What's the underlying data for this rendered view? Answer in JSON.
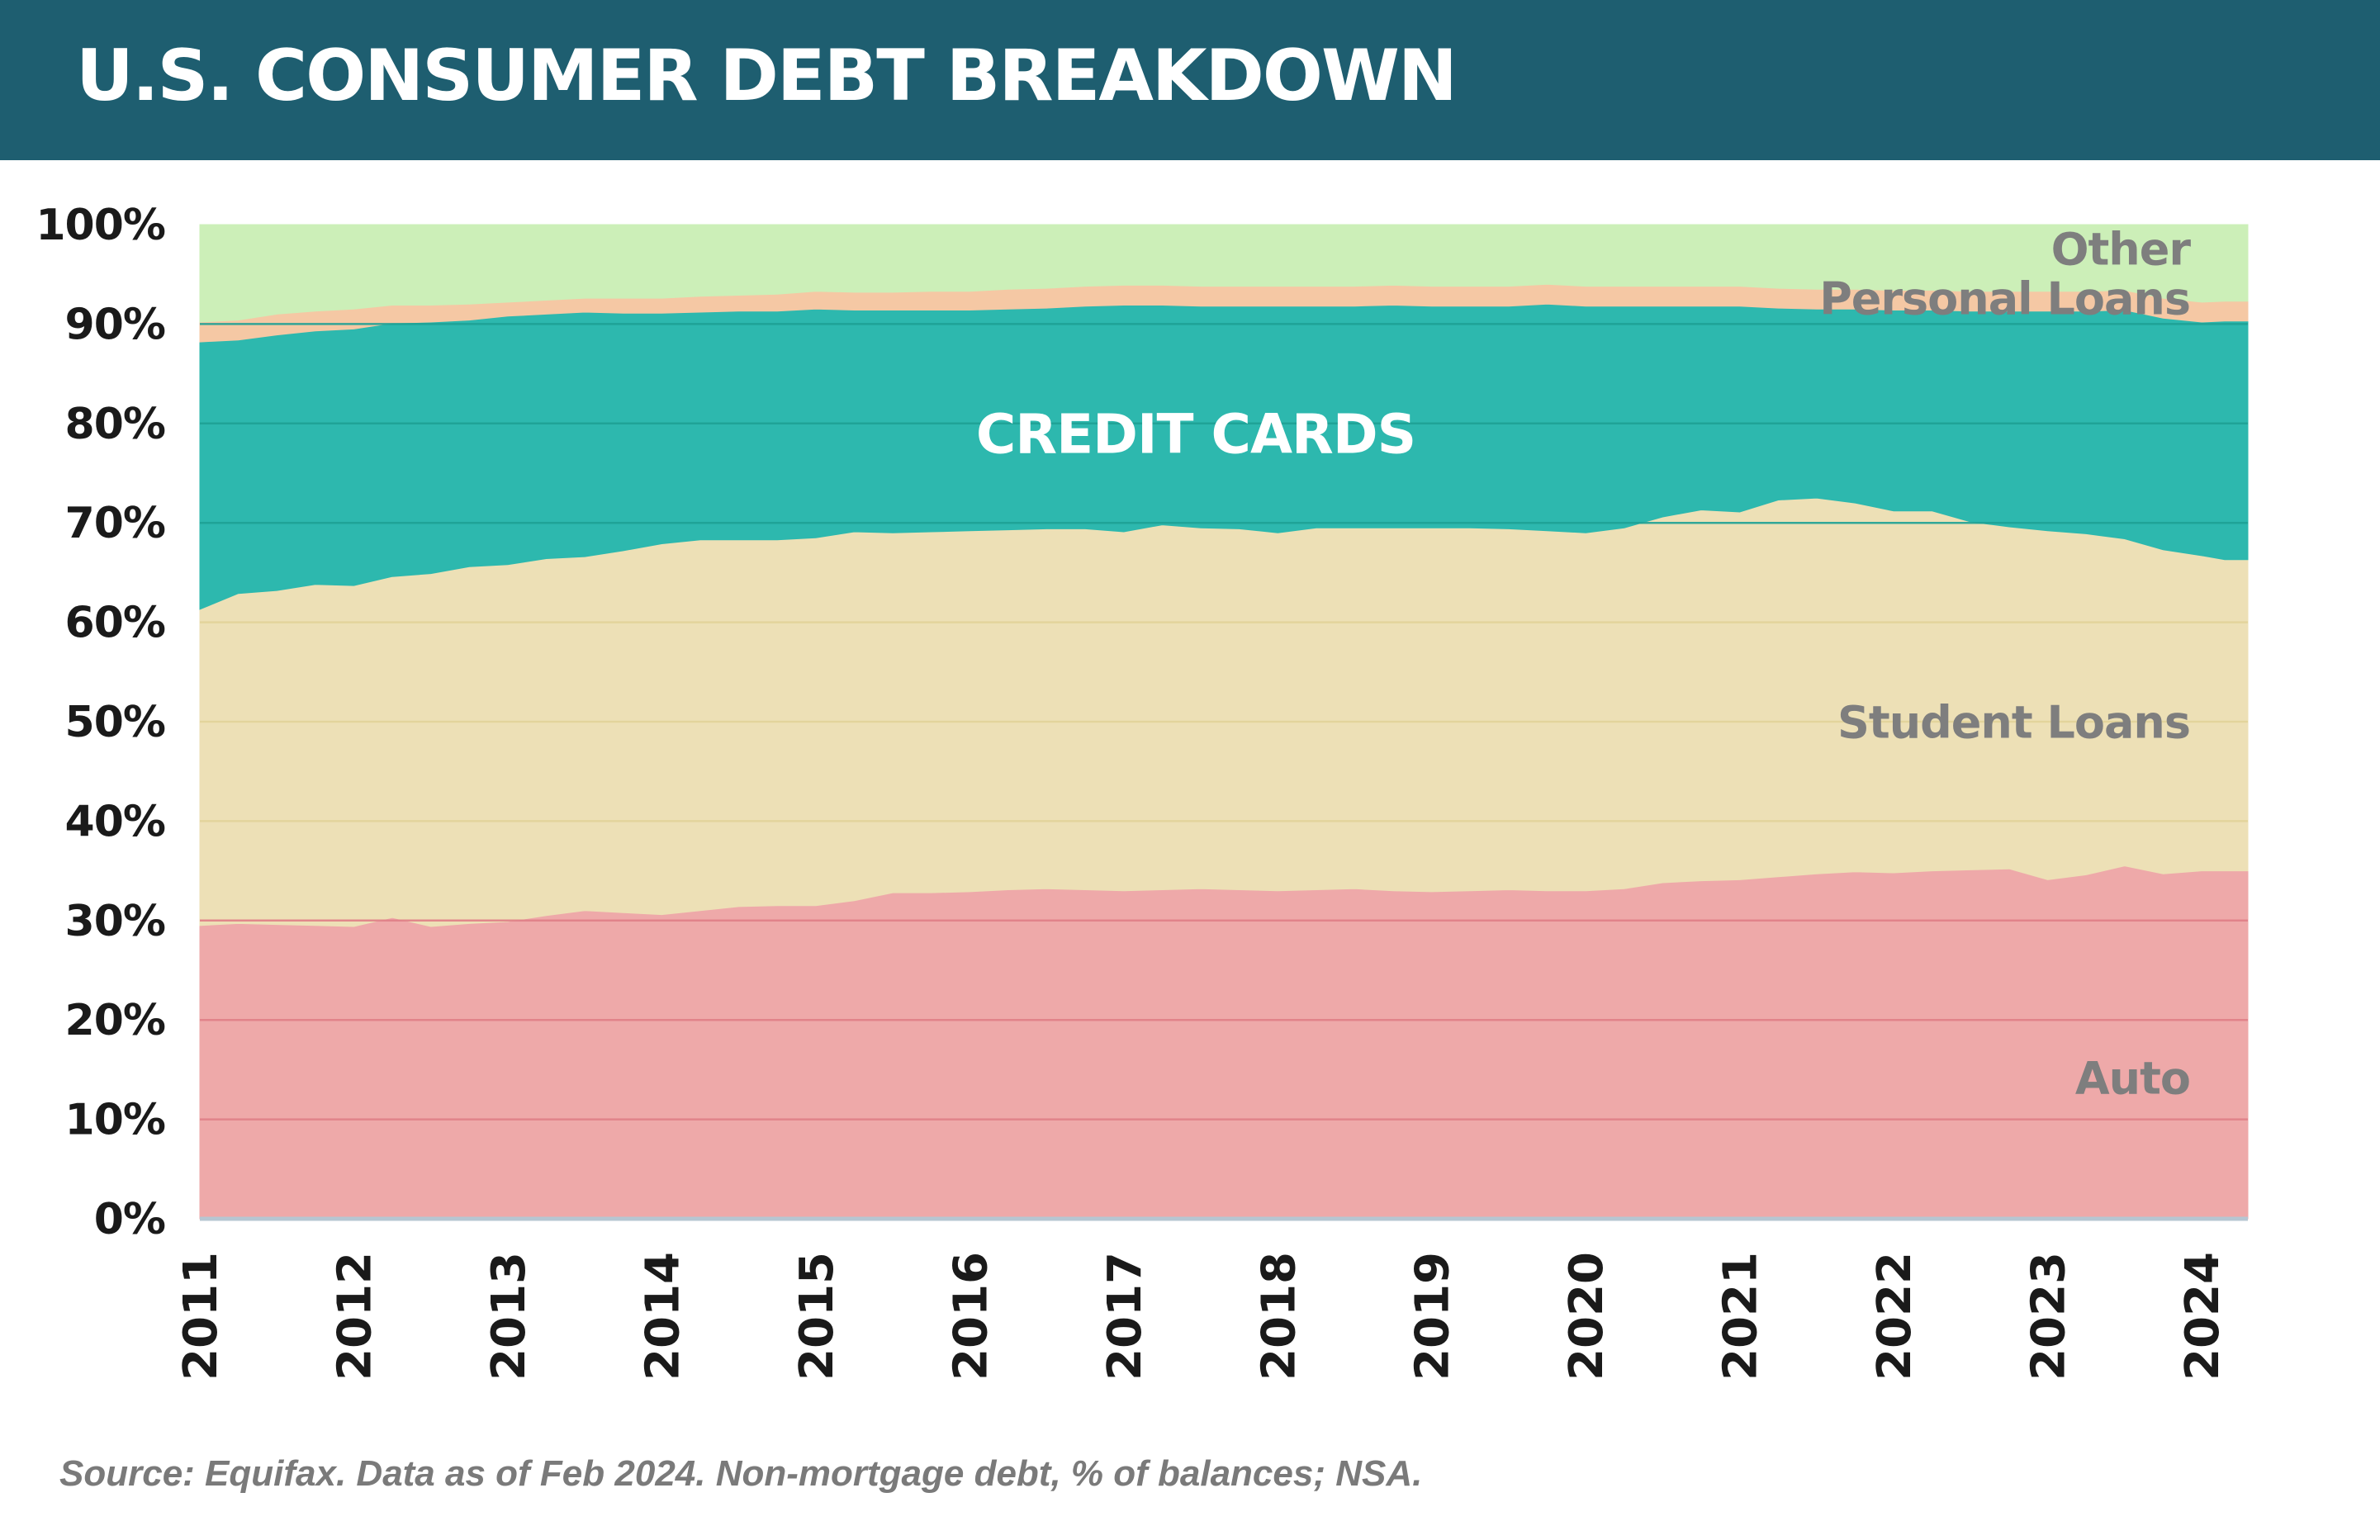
{
  "header": {
    "title": "U.S. CONSUMER DEBT BREAKDOWN"
  },
  "footer": {
    "source": "Source: Equifax. Data as of Feb 2024. Non-mortgage debt, % of balances; NSA."
  },
  "colors": {
    "header_bg": "#1e5e70",
    "auto": "#eea9a9",
    "student_loans": "#ede0b6",
    "credit_cards": "#2db8ae",
    "personal_loans": "#f5c8a4",
    "other": "#ccefb8",
    "auto_grid": "#e07f87",
    "student_grid": "#e3d39a",
    "credit_grid": "#1ea195",
    "series_label": "#7e7e7e",
    "credit_label": "#ffffff"
  },
  "chart_data": {
    "type": "area",
    "stacked": true,
    "title": "U.S. CONSUMER DEBT BREAKDOWN",
    "xlabel": "",
    "ylabel": "",
    "ylim": [
      0,
      100
    ],
    "xlim": [
      2011,
      2024.3
    ],
    "y_ticks": [
      "0%",
      "10%",
      "20%",
      "30%",
      "40%",
      "50%",
      "60%",
      "70%",
      "80%",
      "90%",
      "100%"
    ],
    "x_ticks": [
      "2011",
      "2012",
      "2013",
      "2014",
      "2015",
      "2016",
      "2017",
      "2018",
      "2019",
      "2020",
      "2021",
      "2022",
      "2023",
      "2024"
    ],
    "grid": "horizontal",
    "legend": "inline labels",
    "x": [
      2011.0,
      2011.25,
      2011.5,
      2011.75,
      2012.0,
      2012.25,
      2012.5,
      2012.75,
      2013.0,
      2013.25,
      2013.5,
      2013.75,
      2014.0,
      2014.25,
      2014.5,
      2014.75,
      2015.0,
      2015.25,
      2015.5,
      2015.75,
      2016.0,
      2016.25,
      2016.5,
      2016.75,
      2017.0,
      2017.25,
      2017.5,
      2017.75,
      2018.0,
      2018.25,
      2018.5,
      2018.75,
      2019.0,
      2019.25,
      2019.5,
      2019.75,
      2020.0,
      2020.25,
      2020.5,
      2020.75,
      2021.0,
      2021.25,
      2021.5,
      2021.75,
      2022.0,
      2022.25,
      2022.5,
      2022.75,
      2023.0,
      2023.25,
      2023.5,
      2023.75,
      2024.0,
      2024.15
    ],
    "series": [
      {
        "name": "Auto",
        "label": "Auto",
        "color_key": "auto",
        "values": [
          29.5,
          29.7,
          29.6,
          29.5,
          29.4,
          30.3,
          29.4,
          29.7,
          29.9,
          30.5,
          31.0,
          30.8,
          30.6,
          31.0,
          31.4,
          31.5,
          31.5,
          32.0,
          32.8,
          32.8,
          32.9,
          33.1,
          33.2,
          33.1,
          33.0,
          33.1,
          33.2,
          33.1,
          33.0,
          33.1,
          33.2,
          33.0,
          32.9,
          33.0,
          33.1,
          33.0,
          33.0,
          33.2,
          33.8,
          34.0,
          34.1,
          34.4,
          34.7,
          34.9,
          34.8,
          35.0,
          35.1,
          35.2,
          34.1,
          34.6,
          35.5,
          34.7,
          35.0,
          35.0
        ]
      },
      {
        "name": "Student Loans",
        "label": "Student Loans",
        "color_key": "student_loans",
        "values": [
          31.8,
          33.2,
          33.6,
          34.3,
          34.3,
          34.3,
          35.5,
          35.9,
          35.9,
          35.9,
          35.6,
          36.4,
          37.3,
          37.3,
          36.9,
          36.8,
          37.0,
          37.1,
          36.2,
          36.3,
          36.3,
          36.2,
          36.2,
          36.3,
          36.1,
          36.7,
          36.3,
          36.3,
          36.0,
          36.4,
          36.3,
          36.5,
          36.6,
          36.5,
          36.3,
          36.2,
          36.0,
          36.3,
          36.8,
          37.3,
          37.0,
          37.9,
          37.8,
          37.1,
          36.4,
          36.2,
          35.0,
          34.4,
          35.1,
          34.3,
          32.9,
          32.6,
          31.7,
          31.3
        ]
      },
      {
        "name": "Credit Cards",
        "label": "CREDIT CARDS",
        "color_key": "credit_cards",
        "values": [
          26.9,
          25.5,
          25.7,
          25.5,
          25.8,
          25.5,
          25.3,
          24.8,
          25.0,
          24.6,
          24.6,
          23.9,
          23.2,
          22.9,
          23.0,
          23.0,
          23.0,
          22.3,
          22.4,
          22.3,
          22.2,
          22.2,
          22.2,
          22.4,
          22.8,
          22.1,
          22.3,
          22.4,
          22.8,
          22.3,
          22.3,
          22.4,
          22.3,
          22.3,
          22.4,
          22.8,
          22.8,
          22.3,
          21.2,
          20.5,
          20.7,
          19.3,
          19.0,
          19.5,
          20.2,
          20.2,
          21.2,
          21.7,
          22.1,
          22.4,
          23.0,
          23.3,
          23.5,
          24.0
        ]
      },
      {
        "name": "Personal Loans",
        "label": "Personal Loans",
        "color_key": "personal_loans",
        "values": [
          2.0,
          2.0,
          2.1,
          2.0,
          2.0,
          1.8,
          1.7,
          1.6,
          1.4,
          1.4,
          1.4,
          1.5,
          1.5,
          1.6,
          1.6,
          1.7,
          1.8,
          1.8,
          1.8,
          1.9,
          1.9,
          2.0,
          2.0,
          2.0,
          2.0,
          2.0,
          2.0,
          2.0,
          2.0,
          2.0,
          2.0,
          2.0,
          2.0,
          2.0,
          2.0,
          2.0,
          2.0,
          2.0,
          2.0,
          2.0,
          2.0,
          2.0,
          2.0,
          2.0,
          2.0,
          2.0,
          2.0,
          2.0,
          2.0,
          2.0,
          2.0,
          2.0,
          2.0,
          2.0
        ]
      },
      {
        "name": "Other",
        "label": "Other",
        "color_key": "other",
        "values": [
          9.8,
          9.6,
          9.0,
          8.7,
          8.5,
          8.1,
          8.1,
          8.0,
          7.8,
          7.6,
          7.4,
          7.4,
          7.4,
          7.2,
          7.1,
          7.0,
          6.7,
          6.8,
          6.8,
          6.7,
          6.7,
          6.5,
          6.4,
          6.2,
          6.1,
          6.1,
          6.2,
          6.2,
          6.2,
          6.2,
          6.2,
          6.1,
          6.2,
          6.2,
          6.2,
          6.0,
          6.2,
          6.2,
          6.2,
          6.2,
          6.2,
          6.4,
          6.5,
          6.5,
          6.6,
          6.6,
          6.7,
          6.7,
          6.7,
          6.7,
          6.6,
          7.4,
          7.8,
          7.7
        ]
      }
    ]
  }
}
